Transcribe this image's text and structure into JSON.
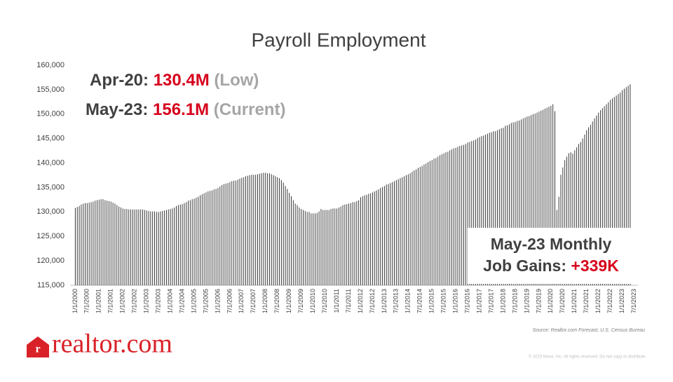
{
  "chart_data": {
    "type": "bar",
    "title": "Payroll Employment",
    "annotations": [
      {
        "label": "Apr-20:",
        "value": "130.4M",
        "note": "(Low)"
      },
      {
        "label": "May-23:",
        "value": "156.1M",
        "note": "(Current)"
      }
    ],
    "callout": {
      "line1": "May-23 Monthly",
      "label": "Job Gains:",
      "value": "+339K"
    },
    "source": "Source: Realtor.com Forecast, U.S. Census Bureau",
    "color": "#3a3a3a",
    "ylim": [
      115000,
      160000
    ],
    "yticks": [
      {
        "value": 115000,
        "label": "115,000"
      },
      {
        "value": 120000,
        "label": "120,000"
      },
      {
        "value": 125000,
        "label": "125,000"
      },
      {
        "value": 130000,
        "label": "130,000"
      },
      {
        "value": 135000,
        "label": "135,000"
      },
      {
        "value": 140000,
        "label": "140,000"
      },
      {
        "value": 145000,
        "label": "145,000"
      },
      {
        "value": 150000,
        "label": "150,000"
      },
      {
        "value": 155000,
        "label": "155,000"
      },
      {
        "value": 160000,
        "label": "160,000"
      }
    ],
    "categories": [
      "1/1/2000",
      null,
      null,
      null,
      null,
      null,
      "7/1/2000",
      null,
      null,
      null,
      null,
      null,
      "1/1/2001",
      null,
      null,
      null,
      null,
      null,
      "7/1/2001",
      null,
      null,
      null,
      null,
      null,
      "1/1/2002",
      null,
      null,
      null,
      null,
      null,
      "7/1/2002",
      null,
      null,
      null,
      null,
      null,
      "1/1/2003",
      null,
      null,
      null,
      null,
      null,
      "7/1/2003",
      null,
      null,
      null,
      null,
      null,
      "1/1/2004",
      null,
      null,
      null,
      null,
      null,
      "7/1/2004",
      null,
      null,
      null,
      null,
      null,
      "1/1/2005",
      null,
      null,
      null,
      null,
      null,
      "7/1/2005",
      null,
      null,
      null,
      null,
      null,
      "1/1/2006",
      null,
      null,
      null,
      null,
      null,
      "7/1/2006",
      null,
      null,
      null,
      null,
      null,
      "1/1/2007",
      null,
      null,
      null,
      null,
      null,
      "7/1/2007",
      null,
      null,
      null,
      null,
      null,
      "1/1/2008",
      null,
      null,
      null,
      null,
      null,
      "7/1/2008",
      null,
      null,
      null,
      null,
      null,
      "1/1/2009",
      null,
      null,
      null,
      null,
      null,
      "7/1/2009",
      null,
      null,
      null,
      null,
      null,
      "1/1/2010",
      null,
      null,
      null,
      null,
      null,
      "7/1/2010",
      null,
      null,
      null,
      null,
      null,
      "1/1/2011",
      null,
      null,
      null,
      null,
      null,
      "7/1/2011",
      null,
      null,
      null,
      null,
      null,
      "1/1/2012",
      null,
      null,
      null,
      null,
      null,
      "7/1/2012",
      null,
      null,
      null,
      null,
      null,
      "1/1/2013",
      null,
      null,
      null,
      null,
      null,
      "7/1/2013",
      null,
      null,
      null,
      null,
      null,
      "1/1/2014",
      null,
      null,
      null,
      null,
      null,
      "7/1/2014",
      null,
      null,
      null,
      null,
      null,
      "1/1/2015",
      null,
      null,
      null,
      null,
      null,
      "7/1/2015",
      null,
      null,
      null,
      null,
      null,
      "1/1/2016",
      null,
      null,
      null,
      null,
      null,
      "7/1/2016",
      null,
      null,
      null,
      null,
      null,
      "1/1/2017",
      null,
      null,
      null,
      null,
      null,
      "7/1/2017",
      null,
      null,
      null,
      null,
      null,
      "1/1/2018",
      null,
      null,
      null,
      null,
      null,
      "7/1/2018",
      null,
      null,
      null,
      null,
      null,
      "1/1/2019",
      null,
      null,
      null,
      null,
      null,
      "7/1/2019",
      null,
      null,
      null,
      null,
      null,
      "1/1/2020",
      null,
      null,
      null,
      null,
      null,
      "7/1/2020",
      null,
      null,
      null,
      null,
      null,
      "1/1/2021",
      null,
      null,
      null,
      null,
      null,
      "7/1/2021",
      null,
      null,
      null,
      null,
      null,
      "1/1/2022",
      null,
      null,
      null,
      null,
      null,
      "7/1/2022",
      null,
      null,
      null,
      null,
      null,
      "1/1/2023",
      null,
      null,
      null,
      null,
      null,
      "7/1/2023"
    ],
    "values": [
      130800,
      131000,
      131200,
      131500,
      131700,
      131800,
      131800,
      131900,
      132000,
      132100,
      132300,
      132400,
      132500,
      132600,
      132600,
      132400,
      132300,
      132200,
      132100,
      131900,
      131700,
      131400,
      131100,
      130900,
      130700,
      130600,
      130600,
      130500,
      130500,
      130500,
      130500,
      130500,
      130500,
      130500,
      130500,
      130400,
      130300,
      130200,
      130100,
      130100,
      130100,
      130000,
      130000,
      130100,
      130200,
      130300,
      130400,
      130500,
      130600,
      130700,
      130900,
      131200,
      131400,
      131500,
      131600,
      131800,
      132000,
      132300,
      132400,
      132600,
      132700,
      132900,
      133100,
      133400,
      133600,
      133800,
      134000,
      134200,
      134300,
      134400,
      134600,
      134700,
      134900,
      135200,
      135500,
      135700,
      135800,
      135900,
      136100,
      136300,
      136400,
      136400,
      136600,
      136800,
      137000,
      137100,
      137300,
      137400,
      137500,
      137600,
      137600,
      137600,
      137700,
      137800,
      137900,
      138000,
      138000,
      137900,
      137900,
      137700,
      137500,
      137300,
      137100,
      136900,
      136500,
      136000,
      135300,
      134700,
      133900,
      133200,
      132400,
      131700,
      131400,
      130900,
      130600,
      130400,
      130200,
      130000,
      130000,
      129700,
      129700,
      129700,
      129800,
      130100,
      130600,
      130400,
      130400,
      130400,
      130400,
      130600,
      130700,
      130700,
      130700,
      130900,
      131100,
      131400,
      131500,
      131600,
      131700,
      131800,
      132000,
      132000,
      132200,
      132400,
      133000,
      133200,
      133400,
      133500,
      133700,
      133800,
      134000,
      134200,
      134400,
      134600,
      134900,
      135100,
      135300,
      135600,
      135700,
      135900,
      136100,
      136300,
      136500,
      136700,
      136900,
      137100,
      137300,
      137500,
      137700,
      137900,
      138200,
      138500,
      138700,
      139000,
      139200,
      139400,
      139700,
      139900,
      140200,
      140400,
      140600,
      140900,
      141000,
      141300,
      141600,
      141800,
      142000,
      142200,
      142300,
      142600,
      142800,
      143000,
      143100,
      143300,
      143500,
      143600,
      143700,
      143900,
      144200,
      144300,
      144500,
      144600,
      144800,
      145100,
      145300,
      145500,
      145600,
      145800,
      146000,
      146200,
      146300,
      146500,
      146500,
      146700,
      146900,
      147100,
      147200,
      147600,
      147700,
      147900,
      148200,
      148300,
      148400,
      148600,
      148700,
      148900,
      149100,
      149300,
      149500,
      149600,
      149800,
      150000,
      150100,
      150300,
      150500,
      150700,
      150900,
      151100,
      151300,
      151500,
      151700,
      152000,
      150600,
      130400,
      133100,
      137600,
      139100,
      140600,
      141300,
      142000,
      142200,
      141900,
      142600,
      143200,
      143900,
      144300,
      145000,
      145800,
      146700,
      147300,
      147800,
      148500,
      149100,
      149700,
      150300,
      150800,
      151200,
      151600,
      152000,
      152400,
      152900,
      153200,
      153500,
      153800,
      154100,
      154400,
      154900,
      155200,
      155500,
      155800,
      156100,
      null,
      null
    ]
  },
  "logo": "realtor.com",
  "copyright": "© 2023 Move, Inc. All rights reserved. Do not copy or distribute."
}
